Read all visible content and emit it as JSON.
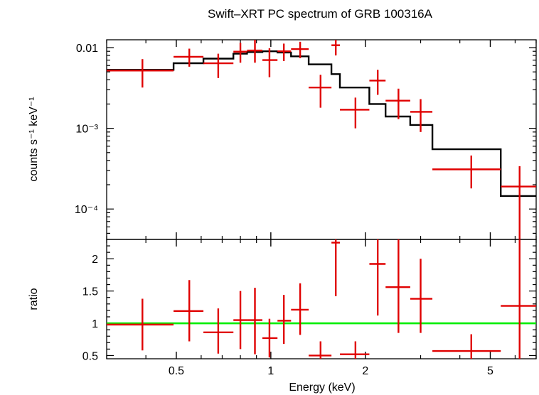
{
  "chart_data": [
    {
      "type": "scatter",
      "title": "Swift–XRT PC spectrum of GRB 100316A",
      "ylabel": "counts s⁻¹ keV⁻¹",
      "x_scale": "log",
      "y_scale": "log",
      "xlim": [
        0.3,
        7.0
      ],
      "ylim": [
        4.2e-05,
        0.0125
      ],
      "y_ticks": [
        {
          "value": 0.01,
          "label": "0.01"
        },
        {
          "value": 0.001,
          "label": "10⁻³"
        },
        {
          "value": 0.0001,
          "label": "10⁻⁴"
        }
      ],
      "series": [
        {
          "kind": "data",
          "color": "#e00000",
          "points": [
            {
              "x": 0.39,
              "xlo": 0.3,
              "xhi": 0.49,
              "y": 0.0052,
              "ylo": 0.0032,
              "yhi": 0.0072
            },
            {
              "x": 0.55,
              "xlo": 0.49,
              "xhi": 0.61,
              "y": 0.0077,
              "ylo": 0.0058,
              "yhi": 0.0097
            },
            {
              "x": 0.68,
              "xlo": 0.61,
              "xhi": 0.76,
              "y": 0.0064,
              "ylo": 0.0042,
              "yhi": 0.0084
            },
            {
              "x": 0.8,
              "xlo": 0.76,
              "xhi": 0.84,
              "y": 0.0089,
              "ylo": 0.0065,
              "yhi": 0.0115
            },
            {
              "x": 0.89,
              "xlo": 0.84,
              "xhi": 0.94,
              "y": 0.0092,
              "ylo": 0.0065,
              "yhi": 0.0125
            },
            {
              "x": 0.99,
              "xlo": 0.94,
              "xhi": 1.05,
              "y": 0.007,
              "ylo": 0.0043,
              "yhi": 0.0098
            },
            {
              "x": 1.1,
              "xlo": 1.05,
              "xhi": 1.16,
              "y": 0.009,
              "ylo": 0.0068,
              "yhi": 0.0112
            },
            {
              "x": 1.24,
              "xlo": 1.16,
              "xhi": 1.32,
              "y": 0.0096,
              "ylo": 0.0074,
              "yhi": 0.0118
            },
            {
              "x": 1.44,
              "xlo": 1.32,
              "xhi": 1.56,
              "y": 0.0032,
              "ylo": 0.0018,
              "yhi": 0.0046
            },
            {
              "x": 1.61,
              "xlo": 1.56,
              "xhi": 1.66,
              "y": 0.0107,
              "ylo": 0.008,
              "yhi": 0.0125
            },
            {
              "x": 1.86,
              "xlo": 1.66,
              "xhi": 2.06,
              "y": 0.0017,
              "ylo": 0.001,
              "yhi": 0.0024
            },
            {
              "x": 2.19,
              "xlo": 2.06,
              "xhi": 2.32,
              "y": 0.0039,
              "ylo": 0.0026,
              "yhi": 0.0053
            },
            {
              "x": 2.55,
              "xlo": 2.32,
              "xhi": 2.78,
              "y": 0.0022,
              "ylo": 0.0013,
              "yhi": 0.0031
            },
            {
              "x": 3.0,
              "xlo": 2.78,
              "xhi": 3.27,
              "y": 0.0016,
              "ylo": 0.0009,
              "yhi": 0.0023
            },
            {
              "x": 4.35,
              "xlo": 3.27,
              "xhi": 5.4,
              "y": 0.00031,
              "ylo": 0.00018,
              "yhi": 0.00046
            },
            {
              "x": 6.2,
              "xlo": 5.4,
              "xhi": 7.0,
              "y": 0.00019,
              "ylo": 4.2e-05,
              "yhi": 0.00034
            }
          ]
        },
        {
          "kind": "model",
          "color": "#000000",
          "steps": [
            {
              "xlo": 0.3,
              "xhi": 0.49,
              "y": 0.0053
            },
            {
              "xlo": 0.49,
              "xhi": 0.61,
              "y": 0.0064
            },
            {
              "xlo": 0.61,
              "xhi": 0.76,
              "y": 0.0073
            },
            {
              "xlo": 0.76,
              "xhi": 0.84,
              "y": 0.0084
            },
            {
              "xlo": 0.84,
              "xhi": 0.94,
              "y": 0.0088
            },
            {
              "xlo": 0.94,
              "xhi": 1.05,
              "y": 0.009
            },
            {
              "xlo": 1.05,
              "xhi": 1.16,
              "y": 0.0087
            },
            {
              "xlo": 1.16,
              "xhi": 1.32,
              "y": 0.0078
            },
            {
              "xlo": 1.32,
              "xhi": 1.56,
              "y": 0.0062
            },
            {
              "xlo": 1.56,
              "xhi": 1.66,
              "y": 0.0047
            },
            {
              "xlo": 1.66,
              "xhi": 2.06,
              "y": 0.0032
            },
            {
              "xlo": 2.06,
              "xhi": 2.32,
              "y": 0.002
            },
            {
              "xlo": 2.32,
              "xhi": 2.78,
              "y": 0.0014
            },
            {
              "xlo": 2.78,
              "xhi": 3.27,
              "y": 0.0011
            },
            {
              "xlo": 3.27,
              "xhi": 5.4,
              "y": 0.00055
            },
            {
              "xlo": 5.4,
              "xhi": 7.0,
              "y": 0.000145
            }
          ]
        }
      ]
    },
    {
      "type": "scatter",
      "xlabel": "Energy (keV)",
      "ylabel": "ratio",
      "x_scale": "log",
      "xlim": [
        0.3,
        7.0
      ],
      "ylim": [
        0.45,
        2.3
      ],
      "x_ticks": [
        {
          "value": 0.5,
          "label": "0.5"
        },
        {
          "value": 1,
          "label": "1"
        },
        {
          "value": 2,
          "label": "2"
        },
        {
          "value": 5,
          "label": "5"
        }
      ],
      "y_ticks": [
        {
          "value": 0.5,
          "label": "0.5"
        },
        {
          "value": 1,
          "label": "1"
        },
        {
          "value": 1.5,
          "label": "1.5"
        },
        {
          "value": 2,
          "label": "2"
        }
      ],
      "reference_line": {
        "y": 1,
        "color": "#00ee00"
      },
      "series": [
        {
          "kind": "data",
          "color": "#e00000",
          "points": [
            {
              "x": 0.39,
              "xlo": 0.3,
              "xhi": 0.49,
              "y": 0.98,
              "ylo": 0.58,
              "yhi": 1.38
            },
            {
              "x": 0.55,
              "xlo": 0.49,
              "xhi": 0.61,
              "y": 1.19,
              "ylo": 0.72,
              "yhi": 1.67
            },
            {
              "x": 0.68,
              "xlo": 0.61,
              "xhi": 0.76,
              "y": 0.86,
              "ylo": 0.53,
              "yhi": 1.23
            },
            {
              "x": 0.8,
              "xlo": 0.76,
              "xhi": 0.84,
              "y": 1.05,
              "ylo": 0.6,
              "yhi": 1.5
            },
            {
              "x": 0.89,
              "xlo": 0.84,
              "xhi": 0.94,
              "y": 1.05,
              "ylo": 0.52,
              "yhi": 1.55
            },
            {
              "x": 0.99,
              "xlo": 0.94,
              "xhi": 1.05,
              "y": 0.77,
              "ylo": 0.47,
              "yhi": 1.07
            },
            {
              "x": 1.1,
              "xlo": 1.05,
              "xhi": 1.16,
              "y": 1.04,
              "ylo": 0.68,
              "yhi": 1.44
            },
            {
              "x": 1.24,
              "xlo": 1.16,
              "xhi": 1.32,
              "y": 1.21,
              "ylo": 0.82,
              "yhi": 1.62
            },
            {
              "x": 1.44,
              "xlo": 1.32,
              "xhi": 1.56,
              "y": 0.5,
              "ylo": 0.45,
              "yhi": 0.72
            },
            {
              "x": 1.61,
              "xlo": 1.56,
              "xhi": 1.66,
              "y": 2.25,
              "ylo": 1.42,
              "yhi": 2.3
            },
            {
              "x": 1.86,
              "xlo": 1.66,
              "xhi": 2.06,
              "y": 0.52,
              "ylo": 0.45,
              "yhi": 0.72
            },
            {
              "x": 2.19,
              "xlo": 2.06,
              "xhi": 2.32,
              "y": 1.92,
              "ylo": 1.12,
              "yhi": 2.3
            },
            {
              "x": 2.55,
              "xlo": 2.32,
              "xhi": 2.78,
              "y": 1.56,
              "ylo": 0.85,
              "yhi": 2.3
            },
            {
              "x": 3.0,
              "xlo": 2.78,
              "xhi": 3.27,
              "y": 1.38,
              "ylo": 0.85,
              "yhi": 2.0
            },
            {
              "x": 4.35,
              "xlo": 3.27,
              "xhi": 5.4,
              "y": 0.57,
              "ylo": 0.45,
              "yhi": 0.83
            },
            {
              "x": 6.2,
              "xlo": 5.4,
              "xhi": 7.0,
              "y": 1.27,
              "ylo": 0.45,
              "yhi": 2.3
            }
          ]
        }
      ]
    }
  ]
}
